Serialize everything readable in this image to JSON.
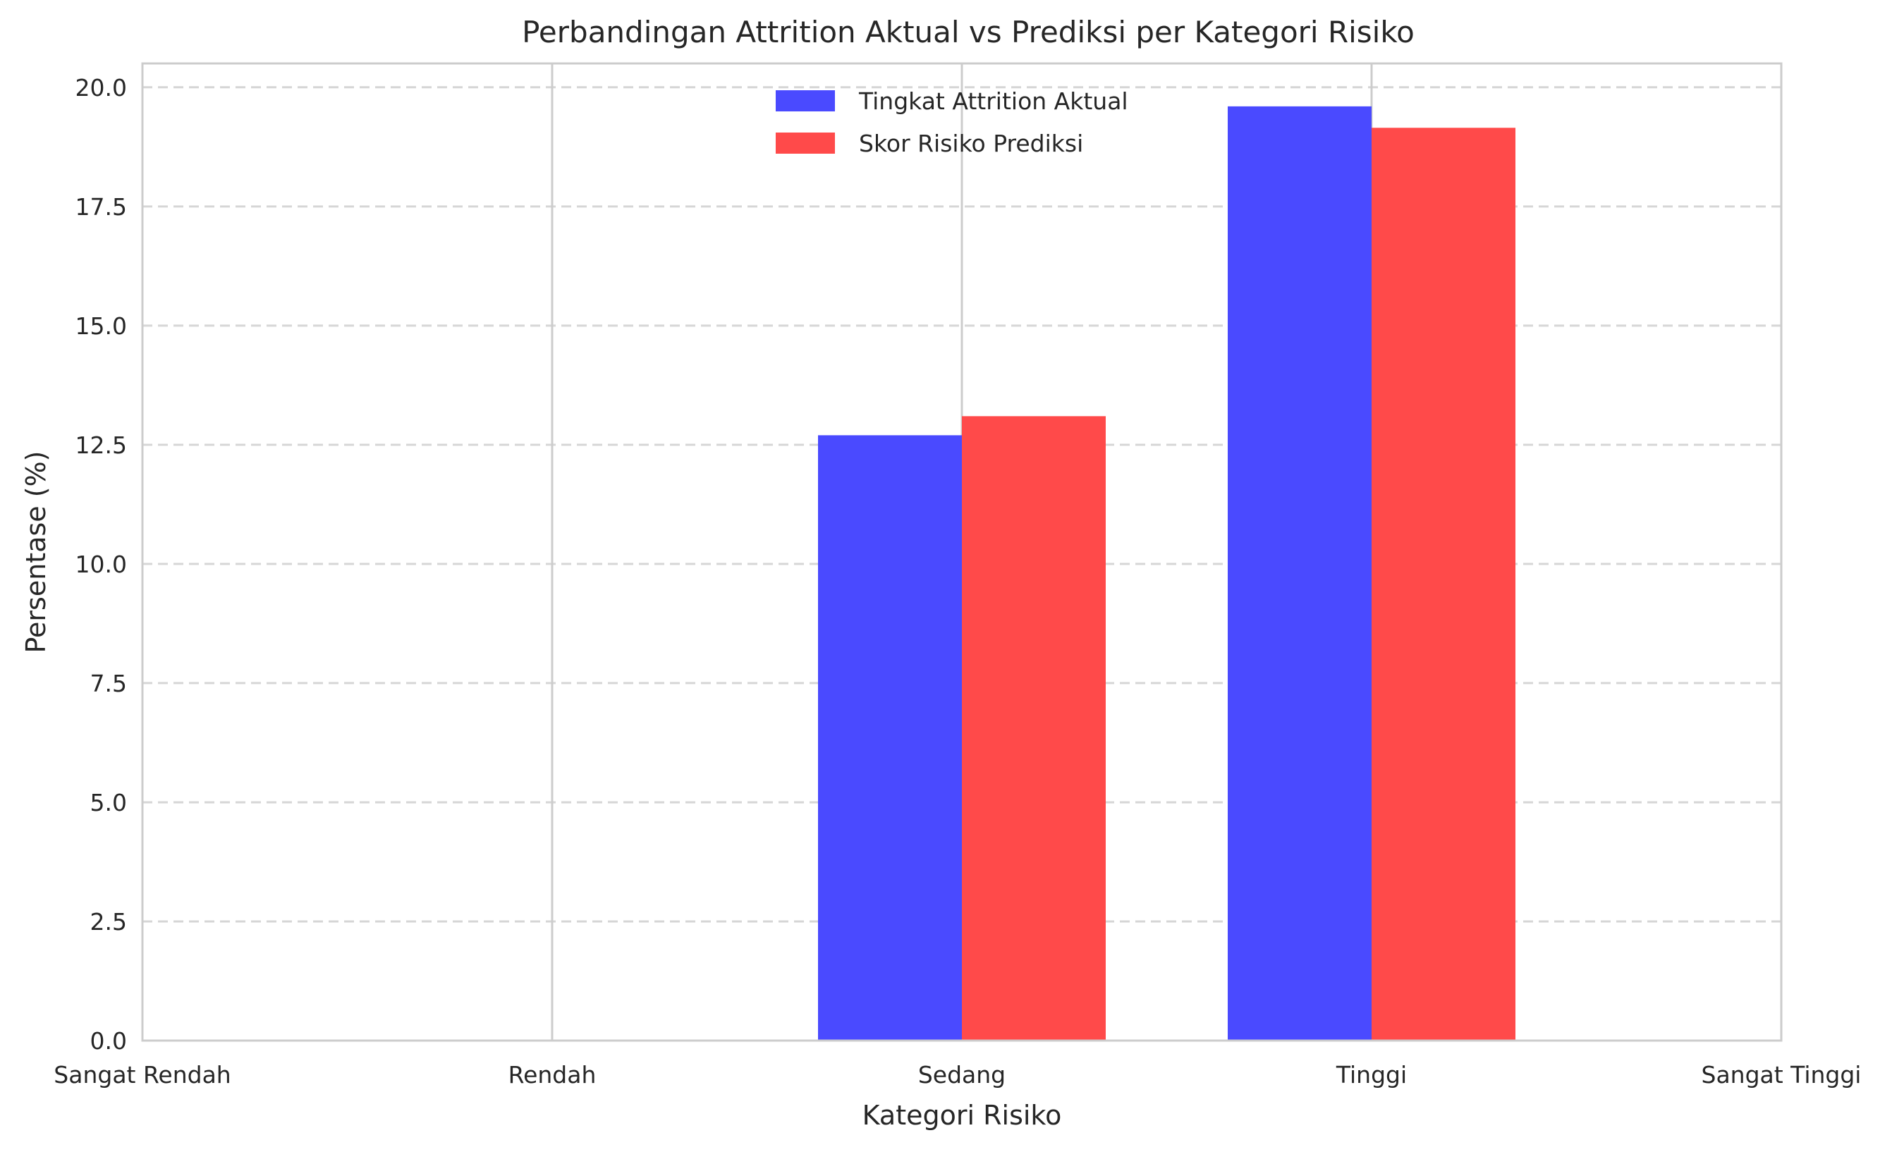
{
  "chart_data": {
    "type": "bar",
    "title": "Perbandingan Attrition Aktual vs Prediksi per Kategori Risiko",
    "xlabel": "Kategori Risiko",
    "ylabel": "Persentase (%)",
    "categories": [
      "Sangat Rendah",
      "Rendah",
      "Sedang",
      "Tinggi",
      "Sangat Tinggi"
    ],
    "ylim": [
      0,
      20.5
    ],
    "yticks": [
      "0.0",
      "2.5",
      "5.0",
      "7.5",
      "10.0",
      "12.5",
      "15.0",
      "17.5",
      "20.0"
    ],
    "grid": true,
    "legend_position": "top-center",
    "series": [
      {
        "name": "Tingkat Attrition Aktual",
        "color": "#4a4aff",
        "values": [
          null,
          null,
          12.7,
          19.6,
          null
        ]
      },
      {
        "name": "Skor Risiko Prediksi",
        "color": "#ff4a4a",
        "values": [
          null,
          null,
          13.1,
          19.15,
          null
        ]
      }
    ]
  }
}
